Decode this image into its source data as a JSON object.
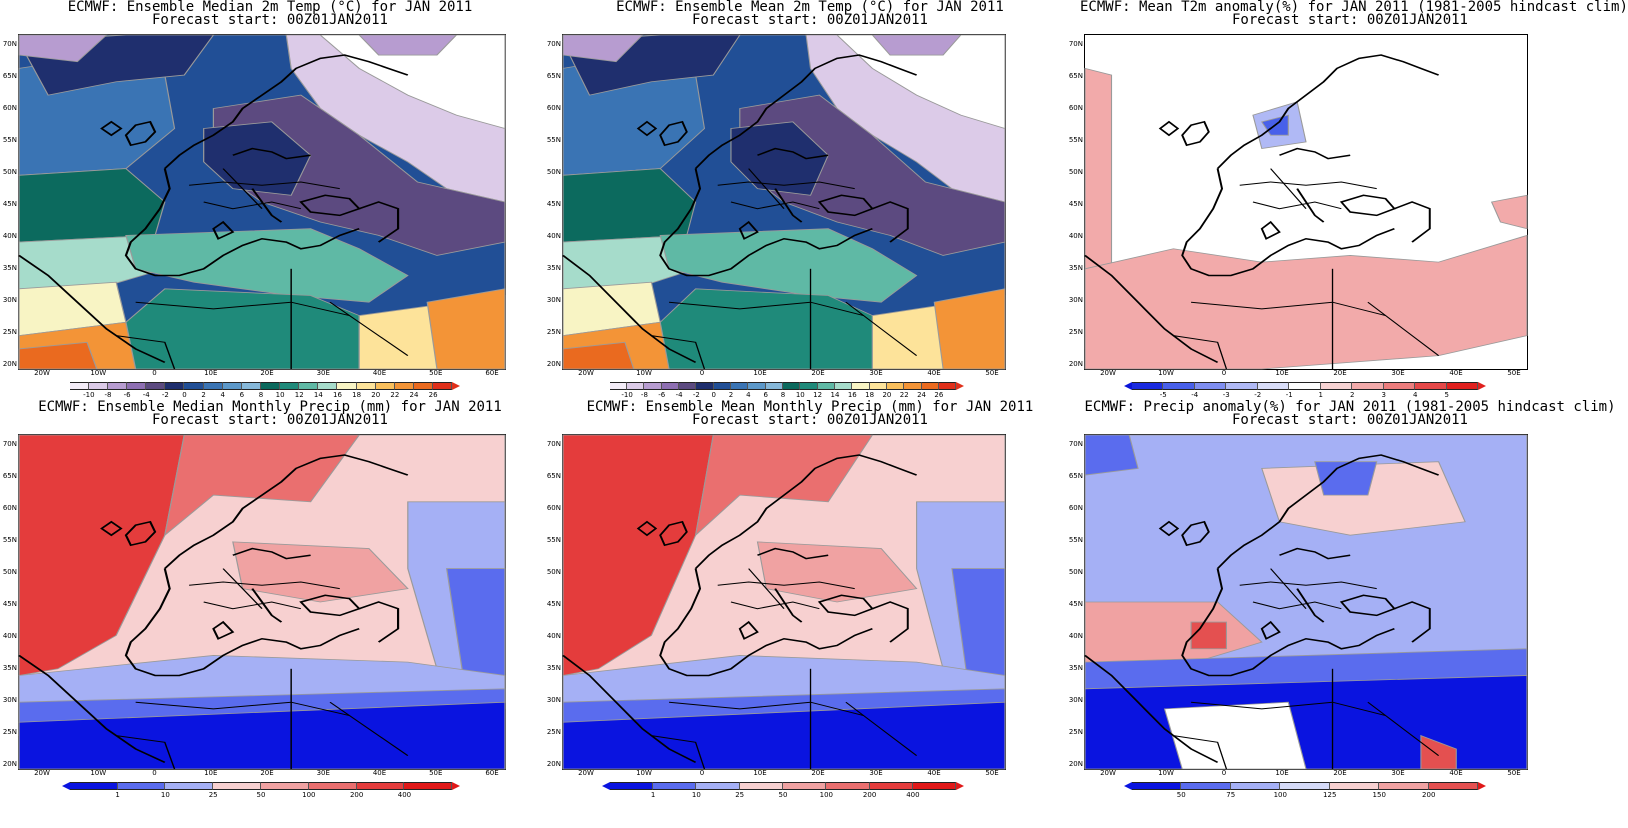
{
  "panels": [
    {
      "title1": "ECMWF: Ensemble Median 2m Temp (°C) for JAN 2011",
      "title2": "Forecast start: 00Z01JAN2011",
      "field": "temp",
      "xlabels": [
        "20W",
        "10W",
        "0",
        "10E",
        "20E",
        "30E",
        "40E",
        "50E",
        "60E"
      ],
      "ylabels": [
        "70N",
        "65N",
        "60N",
        "55N",
        "50N",
        "45N",
        "40N",
        "35N",
        "30N",
        "25N",
        "20N"
      ],
      "colorbar": {
        "labels": [
          "-10",
          "-8",
          "-6",
          "-4",
          "-2",
          "0",
          "2",
          "4",
          "6",
          "8",
          "10",
          "12",
          "14",
          "16",
          "18",
          "20",
          "22",
          "24",
          "26"
        ],
        "colors": [
          "#f3ecf7",
          "#dccbe8",
          "#b79cd0",
          "#8e6fb2",
          "#5c4a80",
          "#1f2f6e",
          "#214f96",
          "#3a74b4",
          "#5c98c9",
          "#86b8d9",
          "#0c6a5e",
          "#1f8a7a",
          "#5fb9a5",
          "#a6dccb",
          "#f8f4c4",
          "#fde39a",
          "#f9bf5c",
          "#f39437",
          "#ea6a1f",
          "#e0301a"
        ],
        "low_end": "#ffffff",
        "high_end": "#e0301a"
      }
    },
    {
      "title1": "ECMWF: Ensemble Mean 2m Temp (°C) for JAN 2011",
      "title2": "Forecast start: 00Z01JAN2011",
      "field": "temp",
      "xlabels": [
        "20W",
        "10W",
        "0",
        "10E",
        "20E",
        "30E",
        "40E",
        "50E"
      ],
      "ylabels": [
        "70N",
        "65N",
        "60N",
        "55N",
        "50N",
        "45N",
        "40N",
        "35N",
        "30N",
        "25N",
        "20N"
      ],
      "colorbar": {
        "labels": [
          "-10",
          "-8",
          "-6",
          "-4",
          "-2",
          "0",
          "2",
          "4",
          "6",
          "8",
          "10",
          "12",
          "14",
          "16",
          "18",
          "20",
          "22",
          "24",
          "26"
        ],
        "colors": [
          "#f3ecf7",
          "#dccbe8",
          "#b79cd0",
          "#8e6fb2",
          "#5c4a80",
          "#1f2f6e",
          "#214f96",
          "#3a74b4",
          "#5c98c9",
          "#86b8d9",
          "#0c6a5e",
          "#1f8a7a",
          "#5fb9a5",
          "#a6dccb",
          "#f8f4c4",
          "#fde39a",
          "#f9bf5c",
          "#f39437",
          "#ea6a1f",
          "#e0301a"
        ],
        "low_end": "#ffffff",
        "high_end": "#e0301a"
      }
    },
    {
      "title1": "ECMWF: Mean T2m anomaly(%) for JAN 2011 (1981-2005 hindcast clim)",
      "title2": "Forecast start: 00Z01JAN2011",
      "field": "tanom",
      "xlabels": [
        "20W",
        "10W",
        "0",
        "10E",
        "20E",
        "30E",
        "40E",
        "50E"
      ],
      "ylabels": [
        "70N",
        "65N",
        "60N",
        "55N",
        "50N",
        "45N",
        "40N",
        "35N",
        "30N",
        "25N",
        "20N"
      ],
      "colorbar": {
        "labels": [
          "-5",
          "-4",
          "-3",
          "-2",
          "-1",
          "1",
          "2",
          "3",
          "4",
          "5"
        ],
        "colors": [
          "#1a2be0",
          "#4860ea",
          "#7f8ef0",
          "#b0b9f5",
          "#d9ddf8",
          "#ffffff",
          "#f7d3d3",
          "#f2aaaa",
          "#ec7d7d",
          "#e54848",
          "#e0201e"
        ],
        "low_end": "#0a14d8",
        "high_end": "#e0201e"
      }
    },
    {
      "title1": "ECMWF: Ensemble Median Monthly Precip (mm) for JAN 2011",
      "title2": "Forecast start: 00Z01JAN2011",
      "field": "precip",
      "xlabels": [
        "20W",
        "10W",
        "0",
        "10E",
        "20E",
        "30E",
        "40E",
        "50E",
        "60E"
      ],
      "ylabels": [
        "70N",
        "65N",
        "60N",
        "55N",
        "50N",
        "45N",
        "40N",
        "35N",
        "30N",
        "25N",
        "20N"
      ],
      "colorbar": {
        "labels": [
          "1",
          "10",
          "25",
          "50",
          "100",
          "200",
          "400"
        ],
        "colors": [
          "#0a14e0",
          "#5a6cee",
          "#a5b0f5",
          "#f7d0d0",
          "#f0a2a2",
          "#ea6f6f",
          "#e43c3c",
          "#e01818"
        ],
        "low_end": "#0a14e0",
        "high_end": "#e01818"
      }
    },
    {
      "title1": "ECMWF: Ensemble Mean Monthly Precip (mm) for JAN 2011",
      "title2": "Forecast start: 00Z01JAN2011",
      "field": "precip",
      "xlabels": [
        "20W",
        "10W",
        "0",
        "10E",
        "20E",
        "30E",
        "40E",
        "50E"
      ],
      "ylabels": [
        "70N",
        "65N",
        "60N",
        "55N",
        "50N",
        "45N",
        "40N",
        "35N",
        "30N",
        "25N",
        "20N"
      ],
      "colorbar": {
        "labels": [
          "1",
          "10",
          "25",
          "50",
          "100",
          "200",
          "400"
        ],
        "colors": [
          "#0a14e0",
          "#5a6cee",
          "#a5b0f5",
          "#f7d0d0",
          "#f0a2a2",
          "#ea6f6f",
          "#e43c3c",
          "#e01818"
        ],
        "low_end": "#0a14e0",
        "high_end": "#e01818"
      }
    },
    {
      "title1": "ECMWF: Precip anomaly(%) for JAN 2011 (1981-2005 hindcast clim)",
      "title2": "Forecast start: 00Z01JAN2011",
      "field": "panom",
      "xlabels": [
        "20W",
        "10W",
        "0",
        "10E",
        "20E",
        "30E",
        "40E",
        "50E"
      ],
      "ylabels": [
        "70N",
        "65N",
        "60N",
        "55N",
        "50N",
        "45N",
        "40N",
        "35N",
        "30N",
        "25N",
        "20N"
      ],
      "colorbar": {
        "labels": [
          "50",
          "75",
          "100",
          "125",
          "150",
          "200"
        ],
        "colors": [
          "#0a14e0",
          "#5a6cee",
          "#a5b0f5",
          "#d6dbf8",
          "#f7d0d0",
          "#f0a2a2",
          "#e45050"
        ],
        "low_end": "#0a14e0",
        "high_end": "#e01818"
      }
    }
  ]
}
